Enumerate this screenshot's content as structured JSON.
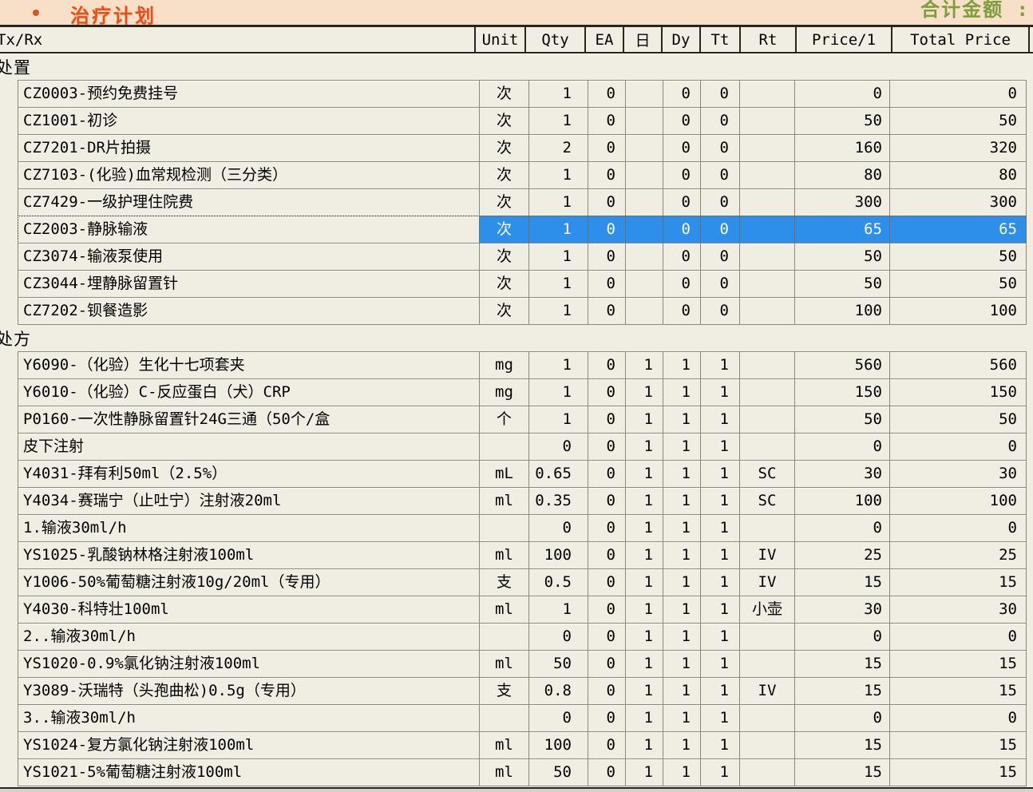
{
  "header": {
    "title": "治疗计划",
    "total_label": "合计金额 :"
  },
  "table": {
    "columns": [
      "Tx/Rx",
      "Unit",
      "Qty",
      "EA",
      "日",
      "Dy",
      "Tt",
      "Rt",
      "Price/1",
      "Total Price"
    ],
    "sections": [
      {
        "label": "处置",
        "rows": [
          {
            "name": "CZ0003-预约免费挂号",
            "unit": "次",
            "qty": "1",
            "ea": "0",
            "day": "",
            "dy": "0",
            "tt": "0",
            "rt": "",
            "price": "0",
            "total": "0"
          },
          {
            "name": "CZ1001-初诊",
            "unit": "次",
            "qty": "1",
            "ea": "0",
            "day": "",
            "dy": "0",
            "tt": "0",
            "rt": "",
            "price": "50",
            "total": "50"
          },
          {
            "name": "CZ7201-DR片拍摄",
            "unit": "次",
            "qty": "2",
            "ea": "0",
            "day": "",
            "dy": "0",
            "tt": "0",
            "rt": "",
            "price": "160",
            "total": "320"
          },
          {
            "name": "CZ7103-(化验)血常规检测（三分类）",
            "unit": "次",
            "qty": "1",
            "ea": "0",
            "day": "",
            "dy": "0",
            "tt": "0",
            "rt": "",
            "price": "80",
            "total": "80"
          },
          {
            "name": "CZ7429-一级护理住院费",
            "unit": "次",
            "qty": "1",
            "ea": "0",
            "day": "",
            "dy": "0",
            "tt": "0",
            "rt": "",
            "price": "300",
            "total": "300"
          },
          {
            "name": "CZ2003-静脉输液",
            "unit": "次",
            "qty": "1",
            "ea": "0",
            "day": "",
            "dy": "0",
            "tt": "0",
            "rt": "",
            "price": "65",
            "total": "65",
            "selected": true
          },
          {
            "name": "CZ3074-输液泵使用",
            "unit": "次",
            "qty": "1",
            "ea": "0",
            "day": "",
            "dy": "0",
            "tt": "0",
            "rt": "",
            "price": "50",
            "total": "50"
          },
          {
            "name": "CZ3044-埋静脉留置针",
            "unit": "次",
            "qty": "1",
            "ea": "0",
            "day": "",
            "dy": "0",
            "tt": "0",
            "rt": "",
            "price": "50",
            "total": "50"
          },
          {
            "name": "CZ7202-钡餐造影",
            "unit": "次",
            "qty": "1",
            "ea": "0",
            "day": "",
            "dy": "0",
            "tt": "0",
            "rt": "",
            "price": "100",
            "total": "100"
          }
        ]
      },
      {
        "label": "处方",
        "rows": [
          {
            "name": "Y6090-（化验）生化十七项套夹",
            "unit": "mg",
            "qty": "1",
            "ea": "0",
            "day": "1",
            "dy": "1",
            "tt": "1",
            "rt": "",
            "price": "560",
            "total": "560"
          },
          {
            "name": "Y6010-（化验）C-反应蛋白（犬）CRP",
            "unit": "mg",
            "qty": "1",
            "ea": "0",
            "day": "1",
            "dy": "1",
            "tt": "1",
            "rt": "",
            "price": "150",
            "total": "150"
          },
          {
            "name": "P0160-一次性静脉留置针24G三通（50个/盒",
            "unit": "个",
            "qty": "1",
            "ea": "0",
            "day": "1",
            "dy": "1",
            "tt": "1",
            "rt": "",
            "price": "50",
            "total": "50"
          },
          {
            "name": "皮下注射",
            "unit": "",
            "qty": "0",
            "ea": "0",
            "day": "1",
            "dy": "1",
            "tt": "1",
            "rt": "",
            "price": "0",
            "total": "0"
          },
          {
            "name": "Y4031-拜有利50ml（2.5%）",
            "unit": "mL",
            "qty": "0.65",
            "ea": "0",
            "day": "1",
            "dy": "1",
            "tt": "1",
            "rt": "SC",
            "price": "30",
            "total": "30"
          },
          {
            "name": "Y4034-赛瑞宁（止吐宁）注射液20ml",
            "unit": "ml",
            "qty": "0.35",
            "ea": "0",
            "day": "1",
            "dy": "1",
            "tt": "1",
            "rt": "SC",
            "price": "100",
            "total": "100"
          },
          {
            "name": "1.输液30ml/h",
            "unit": "",
            "qty": "0",
            "ea": "0",
            "day": "1",
            "dy": "1",
            "tt": "1",
            "rt": "",
            "price": "0",
            "total": "0"
          },
          {
            "name": "YS1025-乳酸钠林格注射液100ml",
            "unit": "ml",
            "qty": "100",
            "ea": "0",
            "day": "1",
            "dy": "1",
            "tt": "1",
            "rt": "IV",
            "price": "25",
            "total": "25"
          },
          {
            "name": "Y1006-50%葡萄糖注射液10g/20ml（专用）",
            "unit": "支",
            "qty": "0.5",
            "ea": "0",
            "day": "1",
            "dy": "1",
            "tt": "1",
            "rt": "IV",
            "price": "15",
            "total": "15"
          },
          {
            "name": "Y4030-科特壮100ml",
            "unit": "ml",
            "qty": "1",
            "ea": "0",
            "day": "1",
            "dy": "1",
            "tt": "1",
            "rt": "小壶",
            "price": "30",
            "total": "30"
          },
          {
            "name": "2..输液30ml/h",
            "unit": "",
            "qty": "0",
            "ea": "0",
            "day": "1",
            "dy": "1",
            "tt": "1",
            "rt": "",
            "price": "0",
            "total": "0"
          },
          {
            "name": "YS1020-0.9%氯化钠注射液100ml",
            "unit": "ml",
            "qty": "50",
            "ea": "0",
            "day": "1",
            "dy": "1",
            "tt": "1",
            "rt": "",
            "price": "15",
            "total": "15"
          },
          {
            "name": "Y3089-沃瑞特（头孢曲松)0.5g（专用）",
            "unit": "支",
            "qty": "0.8",
            "ea": "0",
            "day": "1",
            "dy": "1",
            "tt": "1",
            "rt": "IV",
            "price": "15",
            "total": "15"
          },
          {
            "name": "3..输液30ml/h",
            "unit": "",
            "qty": "0",
            "ea": "0",
            "day": "1",
            "dy": "1",
            "tt": "1",
            "rt": "",
            "price": "0",
            "total": "0"
          },
          {
            "name": "YS1024-复方氯化钠注射液100ml",
            "unit": "ml",
            "qty": "100",
            "ea": "0",
            "day": "1",
            "dy": "1",
            "tt": "1",
            "rt": "",
            "price": "15",
            "total": "15"
          },
          {
            "name": "YS1021-5%葡萄糖注射液100ml",
            "unit": "ml",
            "qty": "50",
            "ea": "0",
            "day": "1",
            "dy": "1",
            "tt": "1",
            "rt": "",
            "price": "15",
            "total": "15"
          }
        ]
      }
    ]
  },
  "colors": {
    "title_accent": "#e0511d",
    "total_label_green": "#7d9d3f",
    "selection_blue": "#2d8fea",
    "top_band": "#f8dfc7",
    "cell_bg": "#f0ede3",
    "grid_line": "#8b897f"
  }
}
